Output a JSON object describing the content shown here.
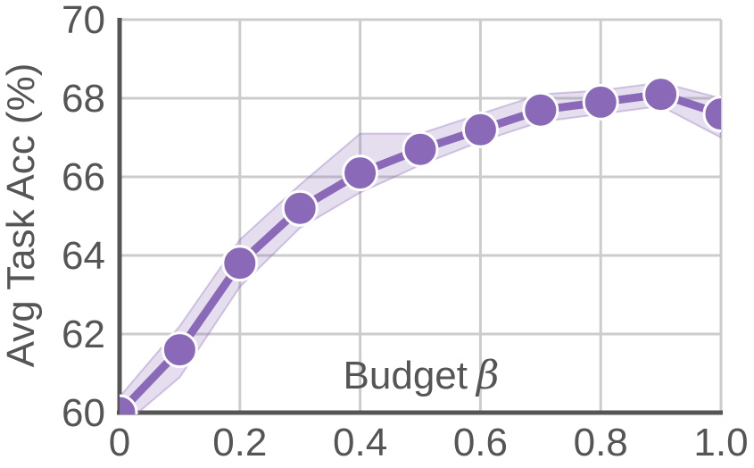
{
  "chart_data": {
    "type": "line",
    "title": "",
    "xlabel": "Budget β",
    "xlabel_text": "Budget",
    "xlabel_symbol": "β",
    "ylabel": "Avg Task Acc (%)",
    "xlim": [
      0,
      1.0
    ],
    "ylim": [
      60,
      70
    ],
    "x_ticks": [
      0,
      0.2,
      0.4,
      0.6,
      0.8,
      1.0
    ],
    "x_tick_labels": [
      "0",
      "0.2",
      "0.4",
      "0.6",
      "0.8",
      "1.0"
    ],
    "y_ticks": [
      60,
      62,
      64,
      66,
      68,
      70
    ],
    "y_tick_labels": [
      "60",
      "62",
      "64",
      "66",
      "68",
      "70"
    ],
    "grid": true,
    "legend": "none",
    "series": [
      {
        "color": "#8a6ab8",
        "x": [
          0,
          0.1,
          0.2,
          0.3,
          0.4,
          0.5,
          0.6,
          0.7,
          0.8,
          0.9,
          1.0
        ],
        "values": [
          60.0,
          61.6,
          63.8,
          65.2,
          66.1,
          66.7,
          67.2,
          67.7,
          67.9,
          68.1,
          67.6
        ],
        "band_lower": [
          59.6,
          60.9,
          63.2,
          64.7,
          65.6,
          66.3,
          66.9,
          67.4,
          67.6,
          67.8,
          67.0
        ],
        "band_upper": [
          60.4,
          62.2,
          64.4,
          65.8,
          67.1,
          67.1,
          67.6,
          68.1,
          68.2,
          68.4,
          68.0
        ]
      }
    ]
  }
}
